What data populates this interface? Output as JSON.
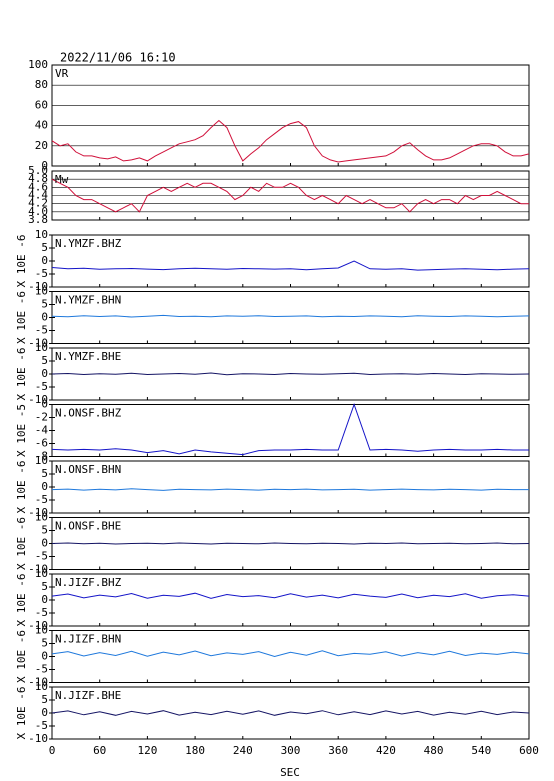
{
  "title": "2022/11/06 16:10",
  "x_axis": {
    "label": "SEC",
    "xlim": [
      0,
      600
    ],
    "xticks": [
      0,
      60,
      120,
      180,
      240,
      300,
      360,
      420,
      480,
      540,
      600
    ]
  },
  "chart_data": [
    {
      "type": "line",
      "grid": true,
      "ylim": [
        0,
        100
      ],
      "yticks": [
        0,
        20,
        40,
        60,
        80,
        100
      ],
      "x": [
        0,
        10,
        20,
        30,
        40,
        50,
        60,
        70,
        80,
        90,
        100,
        110,
        120,
        130,
        140,
        150,
        160,
        170,
        180,
        190,
        200,
        210,
        220,
        230,
        240,
        250,
        260,
        270,
        280,
        290,
        300,
        310,
        320,
        330,
        340,
        350,
        360,
        370,
        380,
        390,
        400,
        410,
        420,
        430,
        440,
        450,
        460,
        470,
        480,
        490,
        500,
        510,
        520,
        530,
        540,
        550,
        560,
        570,
        580,
        590,
        600
      ],
      "series": [
        {
          "name": "VR",
          "color": "#d0103a",
          "values": [
            25,
            20,
            22,
            14,
            10,
            10,
            8,
            7,
            9,
            5,
            6,
            8,
            5,
            10,
            14,
            18,
            22,
            24,
            26,
            30,
            38,
            45,
            38,
            20,
            5,
            12,
            18,
            26,
            32,
            38,
            42,
            44,
            38,
            20,
            10,
            6,
            4,
            5,
            6,
            7,
            8,
            9,
            10,
            14,
            20,
            23,
            16,
            10,
            6,
            6,
            8,
            12,
            16,
            20,
            22,
            22,
            20,
            14,
            10,
            10,
            12
          ]
        }
      ]
    },
    {
      "type": "line",
      "grid": true,
      "ylim": [
        3.8,
        5.0
      ],
      "yticks": [
        3.8,
        {
          "value": 4.0,
          "label": "4.0"
        },
        4.2,
        4.4,
        4.6,
        4.8,
        {
          "value": 5.0,
          "label": "5.0"
        }
      ],
      "x": [
        0,
        10,
        20,
        30,
        40,
        50,
        60,
        70,
        80,
        90,
        100,
        110,
        120,
        130,
        140,
        150,
        160,
        170,
        180,
        190,
        200,
        210,
        220,
        230,
        240,
        250,
        260,
        270,
        280,
        290,
        300,
        310,
        320,
        330,
        340,
        350,
        360,
        370,
        380,
        390,
        400,
        410,
        420,
        430,
        440,
        450,
        460,
        470,
        480,
        490,
        500,
        510,
        520,
        530,
        540,
        550,
        560,
        570,
        580,
        590,
        600
      ],
      "series": [
        {
          "name": "Mw",
          "color": "#d0103a",
          "values": [
            4.8,
            4.7,
            4.6,
            4.4,
            4.3,
            4.3,
            4.2,
            4.1,
            4.0,
            4.1,
            4.2,
            4.0,
            4.4,
            4.5,
            4.6,
            4.5,
            4.6,
            4.7,
            4.6,
            4.7,
            4.7,
            4.6,
            4.5,
            4.3,
            4.4,
            4.6,
            4.5,
            4.7,
            4.6,
            4.6,
            4.7,
            4.6,
            4.4,
            4.3,
            4.4,
            4.3,
            4.2,
            4.4,
            4.3,
            4.2,
            4.3,
            4.2,
            4.1,
            4.1,
            4.2,
            4.0,
            4.2,
            4.3,
            4.2,
            4.3,
            4.3,
            4.2,
            4.4,
            4.3,
            4.4,
            4.4,
            4.5,
            4.4,
            4.3,
            4.2,
            4.2
          ]
        }
      ]
    },
    {
      "type": "line",
      "grid": false,
      "ylabel": "X 10E -6",
      "ylim": [
        -10,
        10
      ],
      "yticks": [
        -10,
        -5,
        0,
        5,
        10
      ],
      "x": [
        0,
        20,
        40,
        60,
        80,
        100,
        120,
        140,
        160,
        180,
        200,
        220,
        240,
        260,
        280,
        300,
        320,
        340,
        360,
        380,
        400,
        420,
        440,
        460,
        480,
        500,
        520,
        540,
        560,
        580,
        600
      ],
      "series": [
        {
          "name": "N.YMZF.BHZ",
          "color": "#1414c8",
          "values": [
            -2.5,
            -3,
            -2.8,
            -3.2,
            -3,
            -2.9,
            -3.1,
            -3.3,
            -3,
            -2.8,
            -3,
            -3.2,
            -2.9,
            -3,
            -3.1,
            -3,
            -3.4,
            -3,
            -2.7,
            0,
            -3,
            -3.2,
            -3,
            -3.5,
            -3.3,
            -3.1,
            -3,
            -3.2,
            -3.4,
            -3.1,
            -3
          ]
        }
      ]
    },
    {
      "type": "line",
      "grid": false,
      "ylabel": "X 10E -6",
      "ylim": [
        -10,
        10
      ],
      "yticks": [
        -10,
        -5,
        0,
        5,
        10
      ],
      "x": [
        0,
        20,
        40,
        60,
        80,
        100,
        120,
        140,
        160,
        180,
        200,
        220,
        240,
        260,
        280,
        300,
        320,
        340,
        360,
        380,
        400,
        420,
        440,
        460,
        480,
        500,
        520,
        540,
        560,
        580,
        600
      ],
      "series": [
        {
          "name": "N.YMZF.BHN",
          "color": "#1e78dc",
          "values": [
            0.5,
            0.3,
            0.7,
            0.4,
            0.6,
            0.2,
            0.5,
            0.8,
            0.4,
            0.5,
            0.3,
            0.6,
            0.5,
            0.7,
            0.4,
            0.5,
            0.6,
            0.3,
            0.5,
            0.4,
            0.6,
            0.5,
            0.3,
            0.7,
            0.5,
            0.4,
            0.6,
            0.5,
            0.3,
            0.5,
            0.6
          ]
        }
      ]
    },
    {
      "type": "line",
      "grid": false,
      "ylabel": "X 10E -6",
      "ylim": [
        -10,
        10
      ],
      "yticks": [
        -10,
        -5,
        0,
        5,
        10
      ],
      "x": [
        0,
        20,
        40,
        60,
        80,
        100,
        120,
        140,
        160,
        180,
        200,
        220,
        240,
        260,
        280,
        300,
        320,
        340,
        360,
        380,
        400,
        420,
        440,
        460,
        480,
        500,
        520,
        540,
        560,
        580,
        600
      ],
      "series": [
        {
          "name": "N.YMZF.BHE",
          "color": "#141464",
          "values": [
            0,
            0.2,
            -0.2,
            0.1,
            -0.1,
            0.3,
            -0.2,
            0,
            0.2,
            -0.1,
            0.4,
            -0.3,
            0.1,
            0,
            -0.2,
            0.2,
            0,
            -0.1,
            0.1,
            0.3,
            -0.2,
            0,
            0.1,
            -0.1,
            0.2,
            0,
            -0.2,
            0.1,
            0,
            -0.1,
            0
          ]
        }
      ]
    },
    {
      "type": "line",
      "grid": false,
      "ylabel": "X 10E -5",
      "ylim": [
        -8,
        0
      ],
      "yticks": [
        -8,
        -6,
        -4,
        -2,
        0
      ],
      "x": [
        0,
        20,
        40,
        60,
        80,
        100,
        120,
        140,
        160,
        180,
        200,
        220,
        240,
        260,
        280,
        300,
        320,
        340,
        360,
        380,
        400,
        420,
        440,
        460,
        480,
        500,
        520,
        540,
        560,
        580,
        600
      ],
      "series": [
        {
          "name": "N.ONSF.BHZ",
          "color": "#1414c8",
          "values": [
            -6.9,
            -7,
            -6.9,
            -7,
            -6.8,
            -7,
            -7.4,
            -7.1,
            -7.6,
            -7,
            -7.3,
            -7.5,
            -7.7,
            -7.1,
            -7,
            -7,
            -6.9,
            -7,
            -7,
            0,
            -7,
            -6.9,
            -7,
            -7.2,
            -7,
            -6.9,
            -7,
            -7,
            -6.9,
            -7,
            -7
          ]
        }
      ]
    },
    {
      "type": "line",
      "grid": false,
      "ylabel": "X 10E -6",
      "ylim": [
        -10,
        10
      ],
      "yticks": [
        -10,
        -5,
        0,
        5,
        10
      ],
      "x": [
        0,
        20,
        40,
        60,
        80,
        100,
        120,
        140,
        160,
        180,
        200,
        220,
        240,
        260,
        280,
        300,
        320,
        340,
        360,
        380,
        400,
        420,
        440,
        460,
        480,
        500,
        520,
        540,
        560,
        580,
        600
      ],
      "series": [
        {
          "name": "N.ONSF.BHN",
          "color": "#1e78dc",
          "values": [
            -1,
            -0.8,
            -1.2,
            -0.9,
            -1.1,
            -0.7,
            -1,
            -1.3,
            -0.9,
            -1,
            -1.1,
            -0.8,
            -1,
            -1.2,
            -0.9,
            -1,
            -0.8,
            -1.1,
            -1,
            -0.9,
            -1.2,
            -1,
            -0.8,
            -1,
            -1.1,
            -0.9,
            -1,
            -1.2,
            -0.9,
            -1,
            -1
          ]
        }
      ]
    },
    {
      "type": "line",
      "grid": false,
      "ylabel": "X 10E -6",
      "ylim": [
        -10,
        10
      ],
      "yticks": [
        -10,
        -5,
        0,
        5,
        10
      ],
      "x": [
        0,
        20,
        40,
        60,
        80,
        100,
        120,
        140,
        160,
        180,
        200,
        220,
        240,
        260,
        280,
        300,
        320,
        340,
        360,
        380,
        400,
        420,
        440,
        460,
        480,
        500,
        520,
        540,
        560,
        580,
        600
      ],
      "series": [
        {
          "name": "N.ONSF.BHE",
          "color": "#141464",
          "values": [
            0,
            0.2,
            -0.1,
            0.1,
            -0.2,
            0,
            0.1,
            -0.1,
            0.2,
            0,
            -0.2,
            0.1,
            0,
            -0.1,
            0.2,
            0,
            -0.1,
            0.1,
            0,
            -0.2,
            0.1,
            0,
            0.2,
            -0.1,
            0,
            0.1,
            -0.1,
            0,
            0.2,
            -0.1,
            0
          ]
        }
      ]
    },
    {
      "type": "line",
      "grid": false,
      "ylabel": "X 10E -6",
      "ylim": [
        -10,
        10
      ],
      "yticks": [
        -10,
        -5,
        0,
        5,
        10
      ],
      "x": [
        0,
        20,
        40,
        60,
        80,
        100,
        120,
        140,
        160,
        180,
        200,
        220,
        240,
        260,
        280,
        300,
        320,
        340,
        360,
        380,
        400,
        420,
        440,
        460,
        480,
        500,
        520,
        540,
        560,
        580,
        600
      ],
      "series": [
        {
          "name": "N.JIZF.BHZ",
          "color": "#1414c8",
          "values": [
            1.5,
            2.3,
            0.8,
            1.9,
            1.2,
            2.5,
            0.7,
            1.8,
            1.4,
            2.6,
            0.6,
            2.1,
            1.3,
            1.7,
            0.9,
            2.4,
            1.1,
            1.9,
            0.8,
            2.2,
            1.5,
            1,
            2.3,
            0.9,
            1.8,
            1.3,
            2.4,
            0.7,
            1.6,
            2,
            1.5
          ]
        }
      ]
    },
    {
      "type": "line",
      "grid": false,
      "ylabel": "X 10E -6",
      "ylim": [
        -10,
        10
      ],
      "yticks": [
        -10,
        -5,
        0,
        5,
        10
      ],
      "x": [
        0,
        20,
        40,
        60,
        80,
        100,
        120,
        140,
        160,
        180,
        200,
        220,
        240,
        260,
        280,
        300,
        320,
        340,
        360,
        380,
        400,
        420,
        440,
        460,
        480,
        500,
        520,
        540,
        560,
        580,
        600
      ],
      "series": [
        {
          "name": "N.JIZF.BHN",
          "color": "#1e78dc",
          "values": [
            1,
            1.9,
            0.2,
            1.5,
            0.4,
            2,
            0.1,
            1.7,
            0.6,
            2.1,
            0.3,
            1.4,
            0.8,
            1.9,
            0,
            1.6,
            0.5,
            2.2,
            0.3,
            1.2,
            0.9,
            1.8,
            0.2,
            1.5,
            0.6,
            2,
            0.4,
            1.3,
            0.8,
            1.7,
            1
          ]
        }
      ]
    },
    {
      "type": "line",
      "grid": false,
      "ylabel": "X 10E -6",
      "ylim": [
        -10,
        10
      ],
      "yticks": [
        -10,
        -5,
        0,
        5,
        10
      ],
      "x": [
        0,
        20,
        40,
        60,
        80,
        100,
        120,
        140,
        160,
        180,
        200,
        220,
        240,
        260,
        280,
        300,
        320,
        340,
        360,
        380,
        400,
        420,
        440,
        460,
        480,
        500,
        520,
        540,
        560,
        580,
        600
      ],
      "series": [
        {
          "name": "N.JIZF.BHE",
          "color": "#141464",
          "values": [
            0,
            0.8,
            -0.7,
            0.5,
            -0.9,
            0.6,
            -0.4,
            0.9,
            -0.8,
            0.3,
            -0.6,
            0.7,
            -0.5,
            0.8,
            -0.9,
            0.4,
            -0.3,
            0.9,
            -0.7,
            0.5,
            -0.6,
            0.8,
            -0.4,
            0.6,
            -0.8,
            0.3,
            -0.5,
            0.7,
            -0.6,
            0.4,
            0
          ]
        }
      ]
    }
  ]
}
